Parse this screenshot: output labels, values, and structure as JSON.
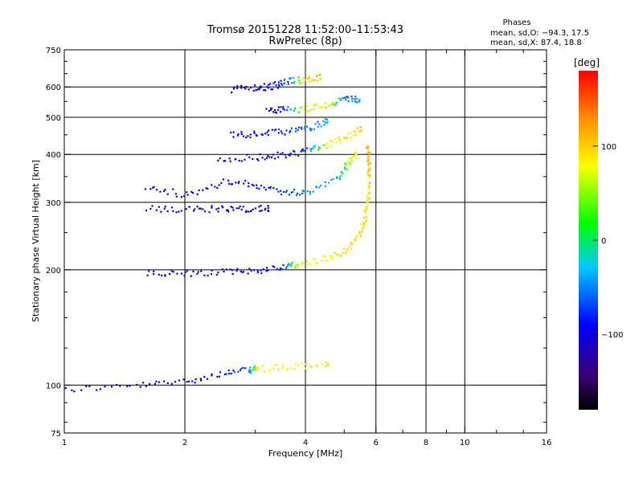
{
  "chart_data": {
    "type": "scatter",
    "title": "Tromsø 20151228 11:52:00–11:53:43",
    "subtitle": "RwPretec (8p)",
    "xlabel": "Frequency [MHz]",
    "ylabel": "Stationary phase Virtual Height [km]",
    "xscale": "log",
    "yscale": "log",
    "xlim": [
      1,
      16
    ],
    "ylim": [
      75,
      750
    ],
    "x_ticks": [
      1,
      2,
      4,
      6,
      8,
      10,
      16
    ],
    "x_tick_labels": [
      "1",
      "2",
      "4",
      "6",
      "8",
      "10",
      "16"
    ],
    "y_ticks": [
      75,
      100,
      200,
      300,
      400,
      500,
      600,
      750
    ],
    "y_tick_labels": [
      "75",
      "100",
      "200",
      "300",
      "400",
      "500",
      "600",
      "750"
    ],
    "grid": true,
    "phase_stats": {
      "heading": "Phases",
      "line1": "mean, sd,O: −94.3, 17.5",
      "line2": "mean, sd,X:  87.4, 18.8"
    },
    "colorbar": {
      "label": "[deg]",
      "range": [
        -180,
        180
      ],
      "ticks": [
        100,
        0,
        -100
      ],
      "tick_labels": [
        "100",
        "0",
        "−100"
      ],
      "colors": [
        "#000000",
        "#3a0070",
        "#0000ff",
        "#00c8ff",
        "#00ff00",
        "#ffff00",
        "#ff8c00",
        "#ff0000"
      ]
    },
    "series": [
      {
        "points": [
          [
            1.0,
            98,
            -100
          ],
          [
            1.5,
            100,
            -100
          ],
          [
            2.0,
            103,
            -100
          ],
          [
            2.5,
            108,
            -90
          ],
          [
            2.9,
            110,
            -60
          ],
          [
            3.0,
            111,
            80
          ],
          [
            3.6,
            112,
            85
          ],
          [
            4.5,
            114,
            95
          ]
        ]
      },
      {
        "points": [
          [
            1.6,
            196,
            -110
          ],
          [
            2.0,
            196,
            -100
          ],
          [
            2.5,
            198,
            -100
          ],
          [
            3.0,
            200,
            -90
          ],
          [
            3.5,
            205,
            -80
          ],
          [
            3.8,
            207,
            70
          ],
          [
            4.5,
            215,
            85
          ],
          [
            5.0,
            225,
            90
          ],
          [
            5.4,
            245,
            95
          ],
          [
            5.6,
            270,
            95
          ],
          [
            5.7,
            300,
            95
          ],
          [
            5.75,
            340,
            100
          ],
          [
            5.75,
            380,
            105
          ],
          [
            5.7,
            420,
            110
          ]
        ]
      },
      {
        "points": [
          [
            1.6,
            330,
            -110
          ],
          [
            2.0,
            315,
            -100
          ],
          [
            2.5,
            340,
            -100
          ],
          [
            3.0,
            335,
            -90
          ],
          [
            3.5,
            320,
            -70
          ],
          [
            4.0,
            320,
            -50
          ],
          [
            4.8,
            350,
            -40
          ],
          [
            5.1,
            380,
            50
          ],
          [
            5.3,
            400,
            85
          ]
        ]
      },
      {
        "points": [
          [
            1.6,
            290,
            -120
          ],
          [
            2.0,
            288,
            -110
          ],
          [
            2.4,
            290,
            -100
          ],
          [
            2.8,
            290,
            -100
          ],
          [
            3.2,
            290,
            -90
          ]
        ]
      },
      {
        "points": [
          [
            2.4,
            390,
            -110
          ],
          [
            3.0,
            395,
            -100
          ],
          [
            3.5,
            400,
            -90
          ],
          [
            4.0,
            410,
            -80
          ],
          [
            4.5,
            425,
            80
          ],
          [
            5.0,
            445,
            90
          ],
          [
            5.5,
            470,
            100
          ]
        ]
      },
      {
        "points": [
          [
            2.6,
            450,
            -100
          ],
          [
            3.0,
            455,
            -90
          ],
          [
            3.5,
            460,
            -80
          ],
          [
            4.0,
            470,
            -60
          ],
          [
            4.5,
            490,
            -40
          ]
        ]
      },
      {
        "points": [
          [
            3.2,
            525,
            -100
          ],
          [
            3.5,
            525,
            -90
          ],
          [
            4.0,
            530,
            90
          ],
          [
            4.5,
            540,
            95
          ],
          [
            5.0,
            560,
            -60
          ],
          [
            5.4,
            560,
            -50
          ]
        ]
      },
      {
        "points": [
          [
            2.6,
            595,
            -110
          ],
          [
            3.0,
            600,
            -100
          ],
          [
            3.3,
            605,
            -90
          ],
          [
            3.6,
            625,
            -80
          ],
          [
            4.0,
            630,
            100
          ],
          [
            4.3,
            638,
            110
          ]
        ]
      }
    ]
  }
}
